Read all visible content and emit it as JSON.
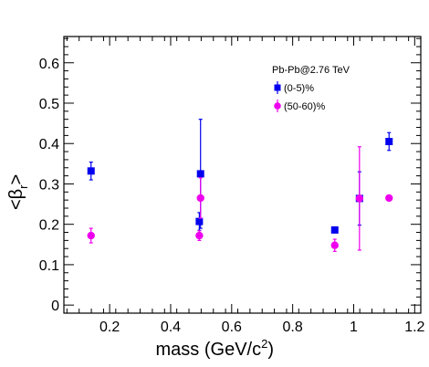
{
  "chart_data": {
    "type": "scatter",
    "xlabel": "mass (GeV/c",
    "xlabel_sup": "2",
    "xlabel_close": ")",
    "ylabel": "<β",
    "ylabel_sub": "r",
    "ylabel_close": ">",
    "xlim": [
      0.05,
      1.22
    ],
    "ylim": [
      -0.02,
      0.665
    ],
    "x_ticks": [
      0.2,
      0.4,
      0.6,
      0.8,
      1,
      1.2
    ],
    "x_tick_labels": [
      "0.2",
      "0.4",
      "0.6",
      "0.8",
      "1",
      "1.2"
    ],
    "y_ticks": [
      0,
      0.1,
      0.2,
      0.3,
      0.4,
      0.5,
      0.6
    ],
    "y_tick_labels": [
      "0",
      "0.1",
      "0.2",
      "0.3",
      "0.4",
      "0.5",
      "0.6"
    ],
    "legend_title": "Pb-Pb@2.76 TeV",
    "legend_position": "top-right",
    "grid": false,
    "series": [
      {
        "name": "(0-5)%",
        "color": "#0000ee",
        "marker": "square",
        "points": [
          {
            "x": 0.139,
            "y": 0.332,
            "err_lo": 0.022,
            "err_hi": 0.022
          },
          {
            "x": 0.494,
            "y": 0.207,
            "err_lo": 0.022,
            "err_hi": 0.022
          },
          {
            "x": 0.498,
            "y": 0.325,
            "err_lo": 0.135,
            "err_hi": 0.135
          },
          {
            "x": 0.938,
            "y": 0.186,
            "err_lo": 0.006,
            "err_hi": 0.006
          },
          {
            "x": 1.019,
            "y": 0.264,
            "err_lo": 0.066,
            "err_hi": 0.066
          },
          {
            "x": 1.116,
            "y": 0.405,
            "err_lo": 0.022,
            "err_hi": 0.022
          }
        ]
      },
      {
        "name": "(50-60)%",
        "color": "#ee00ee",
        "marker": "circle",
        "points": [
          {
            "x": 0.139,
            "y": 0.172,
            "err_lo": 0.018,
            "err_hi": 0.018
          },
          {
            "x": 0.494,
            "y": 0.172,
            "err_lo": 0.012,
            "err_hi": 0.012
          },
          {
            "x": 0.498,
            "y": 0.265,
            "err_lo": 0.05,
            "err_hi": 0.05
          },
          {
            "x": 0.938,
            "y": 0.148,
            "err_lo": 0.015,
            "err_hi": 0.015
          },
          {
            "x": 1.019,
            "y": 0.264,
            "err_lo": 0.128,
            "err_hi": 0.128
          },
          {
            "x": 1.116,
            "y": 0.265,
            "err_lo": 0.005,
            "err_hi": 0.005
          }
        ]
      }
    ]
  }
}
